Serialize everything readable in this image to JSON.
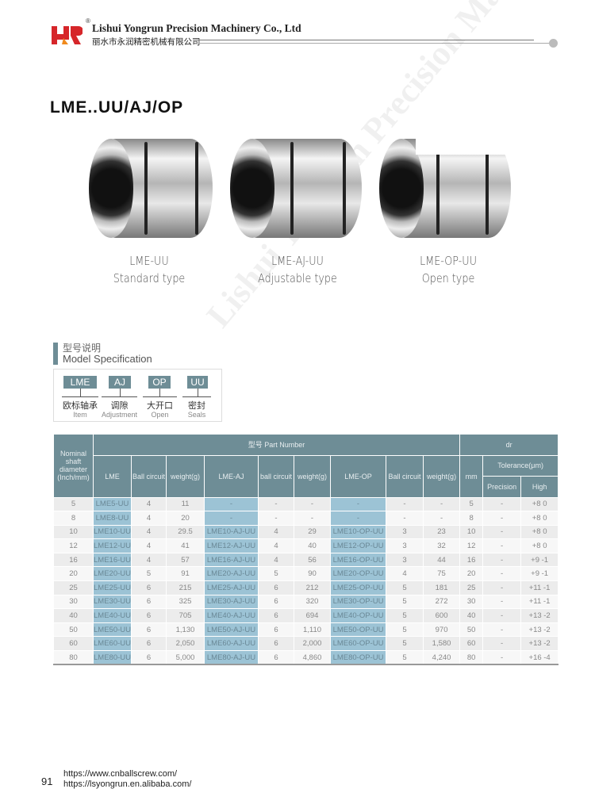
{
  "header": {
    "company_en": "Lishui Yongrun Precision Machinery Co., Ltd",
    "company_cn": "丽水市永润精密机械有限公司",
    "registered": "®",
    "brand_colors": {
      "red": "#d6262a",
      "orange": "#f08a1c"
    }
  },
  "title": "LME..UU/AJ/OP",
  "products": [
    {
      "model": "LME-UU",
      "type": "Standard type"
    },
    {
      "model": "LME-AJ-UU",
      "type": "Adjustable type"
    },
    {
      "model": "LME-OP-UU",
      "type": "Open type"
    }
  ],
  "spec": {
    "title_cn": "型号说明",
    "title_en": "Model Specification",
    "codes": [
      {
        "code": "LME",
        "cn": "欧标轴承",
        "en": "Item"
      },
      {
        "code": "AJ",
        "cn": "调隙",
        "en": "Adjustment"
      },
      {
        "code": "OP",
        "cn": "大开口",
        "en": "Open"
      },
      {
        "code": "UU",
        "cn": "密封",
        "en": "Seals"
      }
    ]
  },
  "table": {
    "h_shaft": "Nominal shaft diameter (Inch/mm)",
    "h_part": "型号 Part Number",
    "h_dr": "dr",
    "h_cols": [
      "LME",
      "Ball circuit",
      "weight(g)",
      "LME-AJ",
      "ball circuit",
      "weight(g)",
      "LME-OP",
      "Ball circuit",
      "weight(g)",
      "mm"
    ],
    "h_tol": "Tolerance(μm)",
    "h_prec": "Precision",
    "h_high": "High",
    "rows": [
      [
        "5",
        "LME5-UU",
        "4",
        "11",
        "-",
        "-",
        "-",
        "-",
        "-",
        "-",
        "5",
        "-",
        "+8 0"
      ],
      [
        "8",
        "LME8-UU",
        "4",
        "20",
        "-",
        "-",
        "-",
        "-",
        "-",
        "-",
        "8",
        "-",
        "+8 0"
      ],
      [
        "10",
        "LME10-UU",
        "4",
        "29.5",
        "LME10-AJ-UU",
        "4",
        "29",
        "LME10-OP-UU",
        "3",
        "23",
        "10",
        "-",
        "+8 0"
      ],
      [
        "12",
        "LME12-UU",
        "4",
        "41",
        "LME12-AJ-UU",
        "4",
        "40",
        "LME12-OP-UU",
        "3",
        "32",
        "12",
        "-",
        "+8 0"
      ],
      [
        "16",
        "LME16-UU",
        "4",
        "57",
        "LME16-AJ-UU",
        "4",
        "56",
        "LME16-OP-UU",
        "3",
        "44",
        "16",
        "-",
        "+9 -1"
      ],
      [
        "20",
        "LME20-UU",
        "5",
        "91",
        "LME20-AJ-UU",
        "5",
        "90",
        "LME20-OP-UU",
        "4",
        "75",
        "20",
        "-",
        "+9 -1"
      ],
      [
        "25",
        "LME25-UU",
        "6",
        "215",
        "LME25-AJ-UU",
        "6",
        "212",
        "LME25-OP-UU",
        "5",
        "181",
        "25",
        "-",
        "+11 -1"
      ],
      [
        "30",
        "LME30-UU",
        "6",
        "325",
        "LME30-AJ-UU",
        "6",
        "320",
        "LME30-OP-UU",
        "5",
        "272",
        "30",
        "-",
        "+11 -1"
      ],
      [
        "40",
        "LME40-UU",
        "6",
        "705",
        "LME40-AJ-UU",
        "6",
        "694",
        "LME40-OP-UU",
        "5",
        "600",
        "40",
        "-",
        "+13 -2"
      ],
      [
        "50",
        "LME50-UU",
        "6",
        "1,130",
        "LME50-AJ-UU",
        "6",
        "1,110",
        "LME50-OP-UU",
        "5",
        "970",
        "50",
        "-",
        "+13 -2"
      ],
      [
        "60",
        "LME60-UU",
        "6",
        "2,050",
        "LME60-AJ-UU",
        "6",
        "2,000",
        "LME60-OP-UU",
        "5",
        "1,580",
        "60",
        "-",
        "+13 -2"
      ],
      [
        "80",
        "LME80-UU",
        "6",
        "5,000",
        "LME80-AJ-UU",
        "6",
        "4,860",
        "LME80-OP-UU",
        "5",
        "4,240",
        "80",
        "-",
        "+16 -4"
      ]
    ]
  },
  "footer": {
    "page": "91",
    "url1": "https://www.cnballscrew.com/",
    "url2": "https://lsyongrun.en.alibaba.com/"
  },
  "watermark": "Lishui Yongrun Precision Machinery Co., Ltd"
}
